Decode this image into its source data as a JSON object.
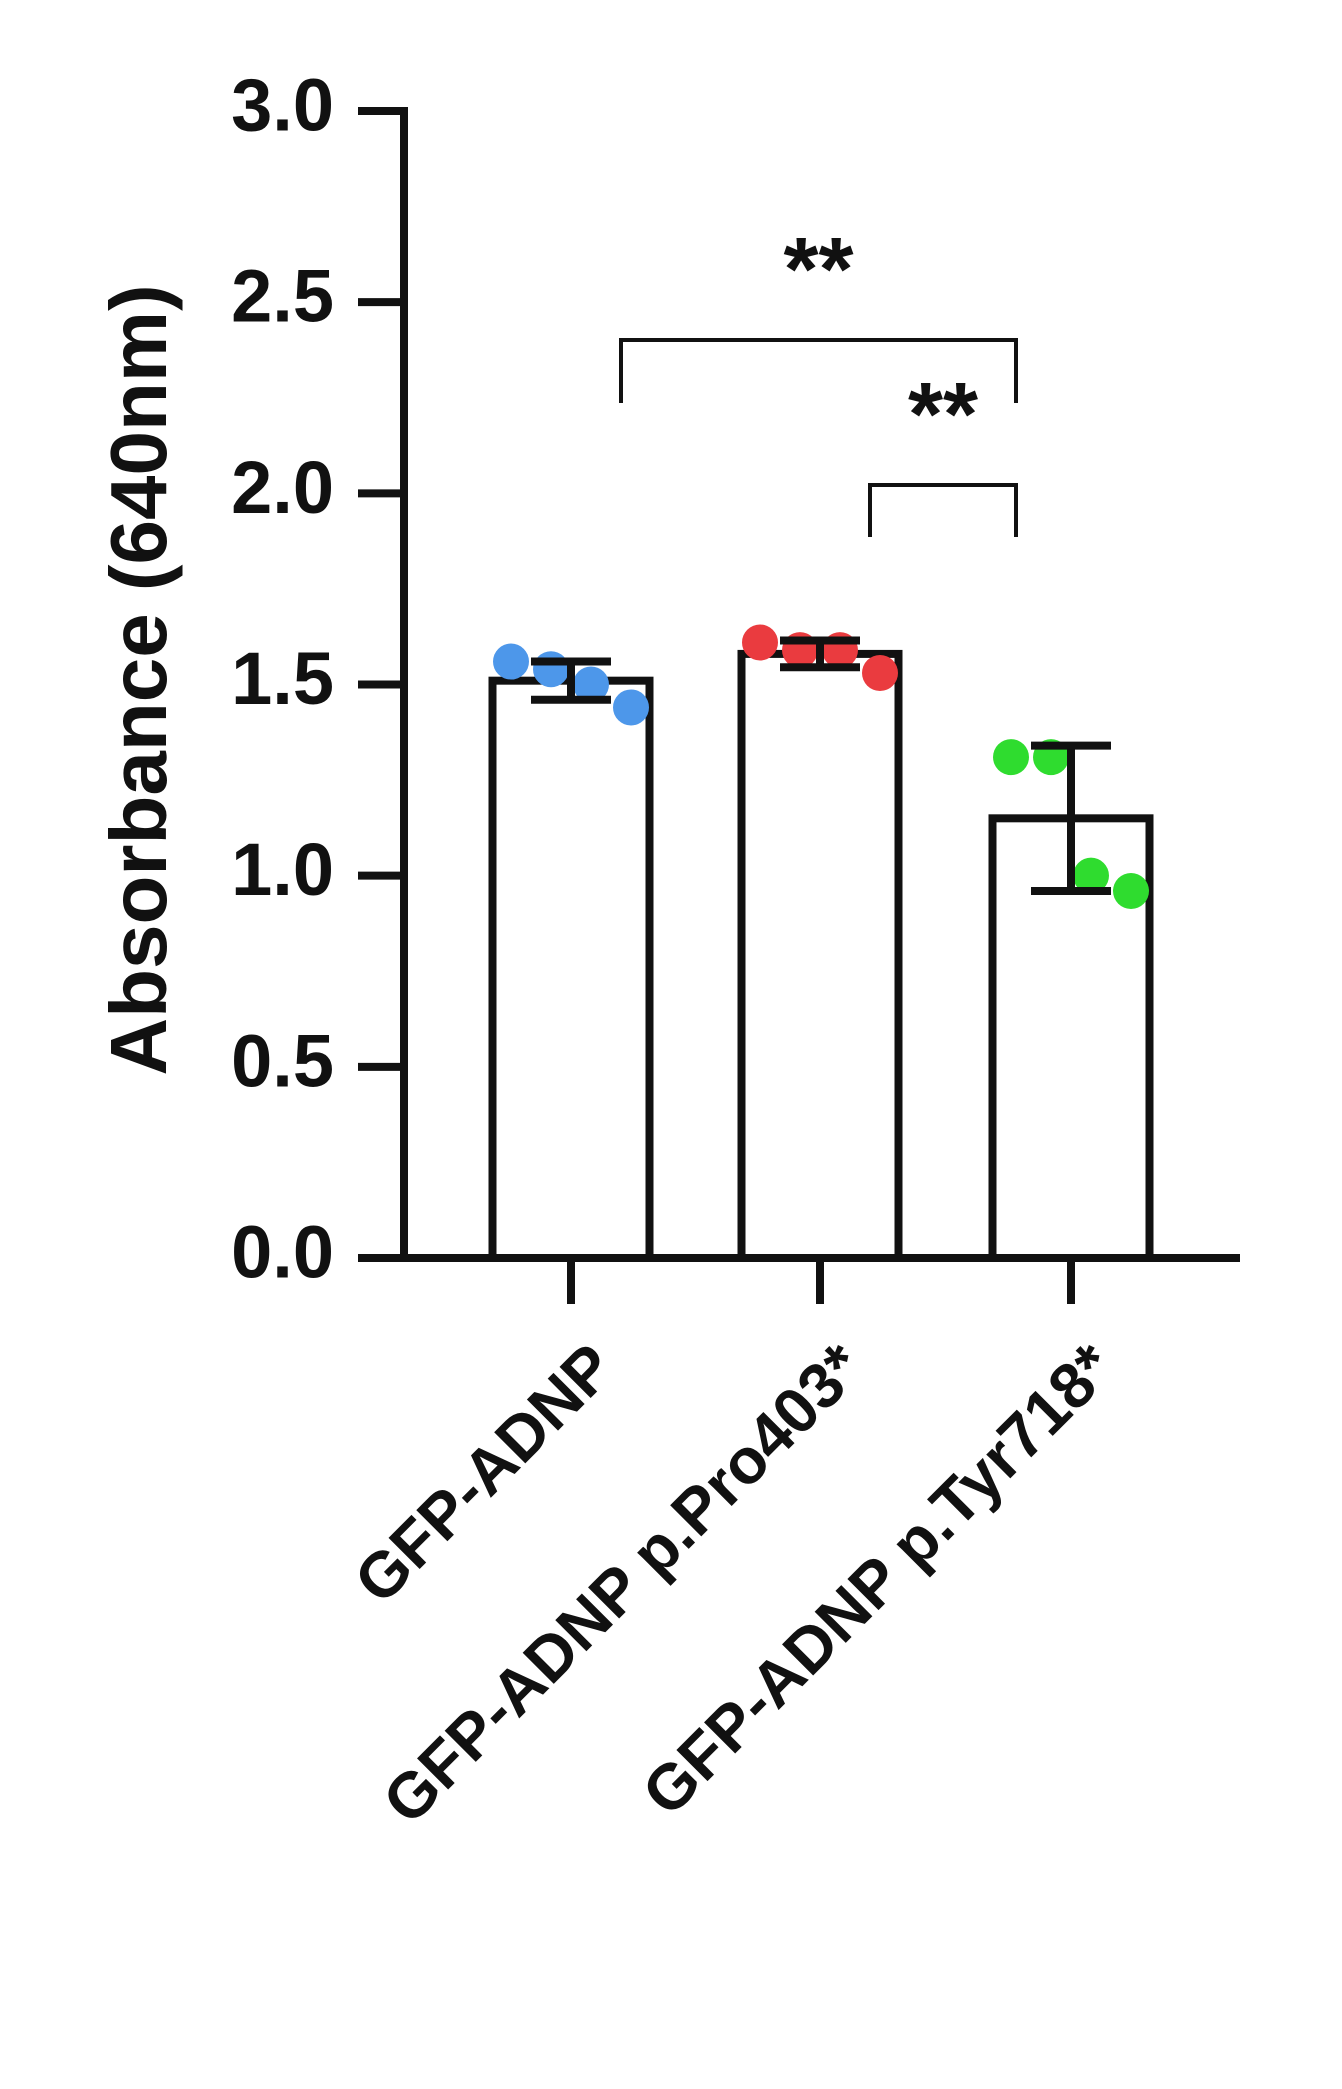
{
  "chart_data": {
    "type": "bar",
    "y_label": "Absorbance (640nm)",
    "categories": [
      "GFP-ADNP",
      "GFP-ADNP p.Pro403*",
      "GFP-ADNP p.Tyr718*"
    ],
    "values": [
      1.51,
      1.58,
      1.15
    ],
    "errors": [
      0.05,
      0.035,
      0.19
    ],
    "points": [
      [
        1.56,
        1.54,
        1.5,
        1.44
      ],
      [
        1.61,
        1.59,
        1.59,
        1.53
      ],
      [
        1.31,
        1.31,
        1.0,
        0.96
      ]
    ],
    "point_colors": [
      "#4d97ea",
      "#ea3b3f",
      "#2fdc2f"
    ],
    "bar_color": "#ffffff",
    "ylim": [
      0,
      3
    ],
    "yticks": [
      {
        "value": 0,
        "label": "0.0"
      },
      {
        "value": 0.5,
        "label": "0.5"
      },
      {
        "value": 1,
        "label": "1.0"
      },
      {
        "value": 1.5,
        "label": "1.5"
      },
      {
        "value": 2,
        "label": "2.0"
      },
      {
        "value": 2.5,
        "label": "2.5"
      },
      {
        "value": 3,
        "label": "3.0"
      }
    ],
    "annotations": [
      {
        "text": "**",
        "from": 0,
        "to": 2
      },
      {
        "text": "**",
        "from": 1,
        "to": 2
      }
    ]
  }
}
